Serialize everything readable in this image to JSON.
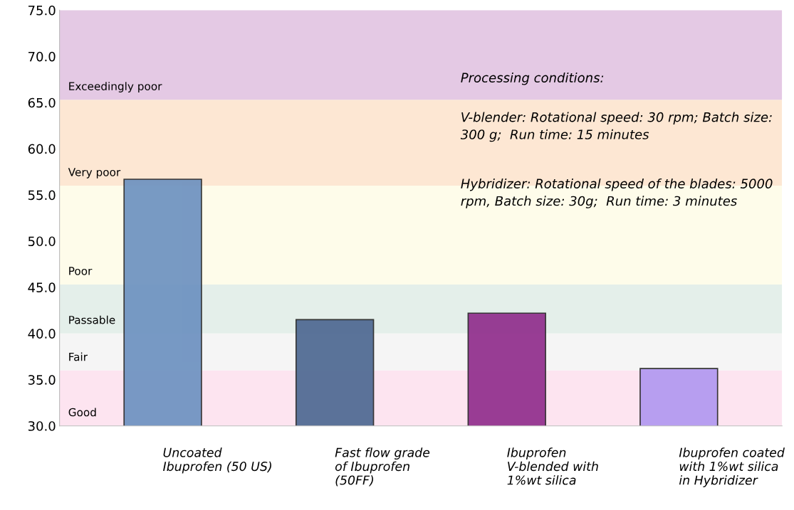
{
  "chart_data": {
    "type": "bar",
    "categories": [
      "Uncoated Ibuprofen (50 US)",
      "Fast flow grade of Ibuprofen (50FF)",
      "Ibuprofen V-blended with 1%wt silica",
      "Ibuprofen coated with 1%wt silica in Hybridizer"
    ],
    "values": [
      56.7,
      41.5,
      42.2,
      36.2
    ],
    "colors": [
      "#6a8fbf",
      "#4a6590",
      "#8e2a8a",
      "#b096f0"
    ],
    "ylim": [
      30,
      75
    ],
    "yticks": [
      {
        "value": 30,
        "label": "30.0"
      },
      {
        "value": 35,
        "label": "35.0"
      },
      {
        "value": 40,
        "label": "40.0"
      },
      {
        "value": 45,
        "label": "45.0"
      },
      {
        "value": 50,
        "label": "50.0"
      },
      {
        "value": 55,
        "label": "55.0"
      },
      {
        "value": 60,
        "label": "60.0"
      },
      {
        "value": 65,
        "label": "65.0"
      },
      {
        "value": 70,
        "label": "70.0"
      },
      {
        "value": 75,
        "label": "75.0"
      }
    ],
    "bands": [
      {
        "axis": "y",
        "from": 30,
        "to": 36,
        "label": "Good",
        "color": "#fde4f0"
      },
      {
        "axis": "y",
        "from": 36,
        "to": 40,
        "label": "Fair",
        "color": "#f5f5f5"
      },
      {
        "axis": "y",
        "from": 40,
        "to": 45.3,
        "label": "Passable",
        "color": "#e4efea"
      },
      {
        "axis": "y",
        "from": 45.3,
        "to": 56,
        "label": "Poor",
        "color": "#fefcea"
      },
      {
        "axis": "y",
        "from": 56,
        "to": 65.3,
        "label": "Very poor",
        "color": "#fde7d3"
      },
      {
        "axis": "y",
        "from": 65.3,
        "to": 75,
        "label": "Exceedingly poor",
        "color": "#e4c9e4"
      }
    ],
    "annotations": [
      "Processing conditions:",
      "V-blender: Rotational speed: 30 rpm; Batch size: 300 g;  Run time: 15 minutes",
      "Hybridizer: Rotational speed of the blades: 5000 rpm, Batch size: 30g;  Run time: 3 minutes"
    ],
    "grid": false,
    "legend": false
  }
}
